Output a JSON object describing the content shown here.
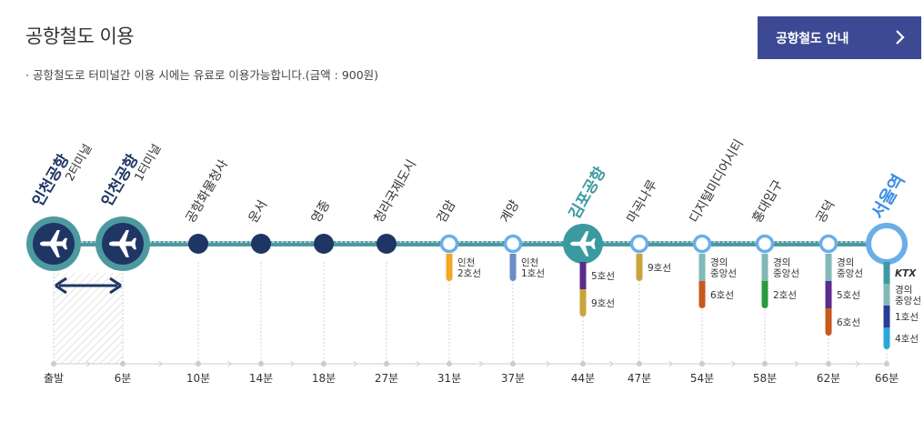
{
  "title": "공항철도 이용",
  "note": "· 공항철도로 터미널간 이용 시에는 유료로 이용가능합니다.(금액 : 900원)",
  "guide_button": {
    "label": "공항철도 안내",
    "icon": "chevron-right-icon"
  },
  "colors": {
    "line": "#4c9aa0",
    "terminal": "#1f3664",
    "accent_button": "#3d4a93",
    "gimpo": "#3a9aa0",
    "seoul": "#3b8ee6"
  },
  "stations": [
    {
      "id": "t2",
      "name": "인천공항",
      "sub": "2터미널",
      "time": "출발",
      "type": "terminal",
      "icon": "airplane-icon"
    },
    {
      "id": "t1",
      "name": "인천공항",
      "sub": "1터미널",
      "time": "6분",
      "type": "terminal",
      "icon": "airplane-icon"
    },
    {
      "id": "cargo",
      "name": "공항화물청사",
      "time": "10분",
      "type": "dark"
    },
    {
      "id": "unseo",
      "name": "운서",
      "time": "14분",
      "type": "dark"
    },
    {
      "id": "yeongjong",
      "name": "영종",
      "time": "18분",
      "type": "dark"
    },
    {
      "id": "cheongna",
      "name": "청라국제도시",
      "time": "27분",
      "type": "dark"
    },
    {
      "id": "geomam",
      "name": "검암",
      "time": "31분",
      "type": "ring",
      "transfers": [
        {
          "label": "인천\n2호선",
          "color": "#f5a623"
        }
      ]
    },
    {
      "id": "gyeyang",
      "name": "계양",
      "time": "37분",
      "type": "ring",
      "transfers": [
        {
          "label": "인천\n1호선",
          "color": "#6b8cc7"
        }
      ]
    },
    {
      "id": "gimpo",
      "name": "김포공항",
      "time": "44분",
      "type": "gimpo",
      "icon": "airplane-icon",
      "transfers": [
        {
          "label": "5호선",
          "color": "#5b2c8c"
        },
        {
          "label": "9호선",
          "color": "#c9a43c"
        }
      ]
    },
    {
      "id": "magok",
      "name": "마곡나루",
      "time": "47분",
      "type": "ring",
      "transfers": [
        {
          "label": "9호선",
          "color": "#c9a43c"
        }
      ]
    },
    {
      "id": "dmc",
      "name": "디지털미디어시티",
      "time": "54분",
      "type": "ring",
      "transfers": [
        {
          "label": "경의\n중앙선",
          "color": "#80b9b5"
        },
        {
          "label": "6호선",
          "color": "#c85a1c"
        }
      ]
    },
    {
      "id": "hongdae",
      "name": "홍대입구",
      "time": "58분",
      "type": "ring",
      "transfers": [
        {
          "label": "경의\n중앙선",
          "color": "#80b9b5"
        },
        {
          "label": "2호선",
          "color": "#2a9a3c"
        }
      ]
    },
    {
      "id": "gongdeok",
      "name": "공덕",
      "time": "62분",
      "type": "ring",
      "transfers": [
        {
          "label": "경의\n중앙선",
          "color": "#80b9b5"
        },
        {
          "label": "5호선",
          "color": "#5b2c8c"
        },
        {
          "label": "6호선",
          "color": "#c85a1c"
        }
      ]
    },
    {
      "id": "seoul",
      "name": "서울역",
      "time": "66분",
      "type": "seoul",
      "transfers": [
        {
          "label": "KTX",
          "color": "#3a9aa0"
        },
        {
          "label": "경의\n중앙선",
          "color": "#80b9b5"
        },
        {
          "label": "1호선",
          "color": "#263c96"
        },
        {
          "label": "4호선",
          "color": "#2aa7d8"
        }
      ]
    }
  ]
}
